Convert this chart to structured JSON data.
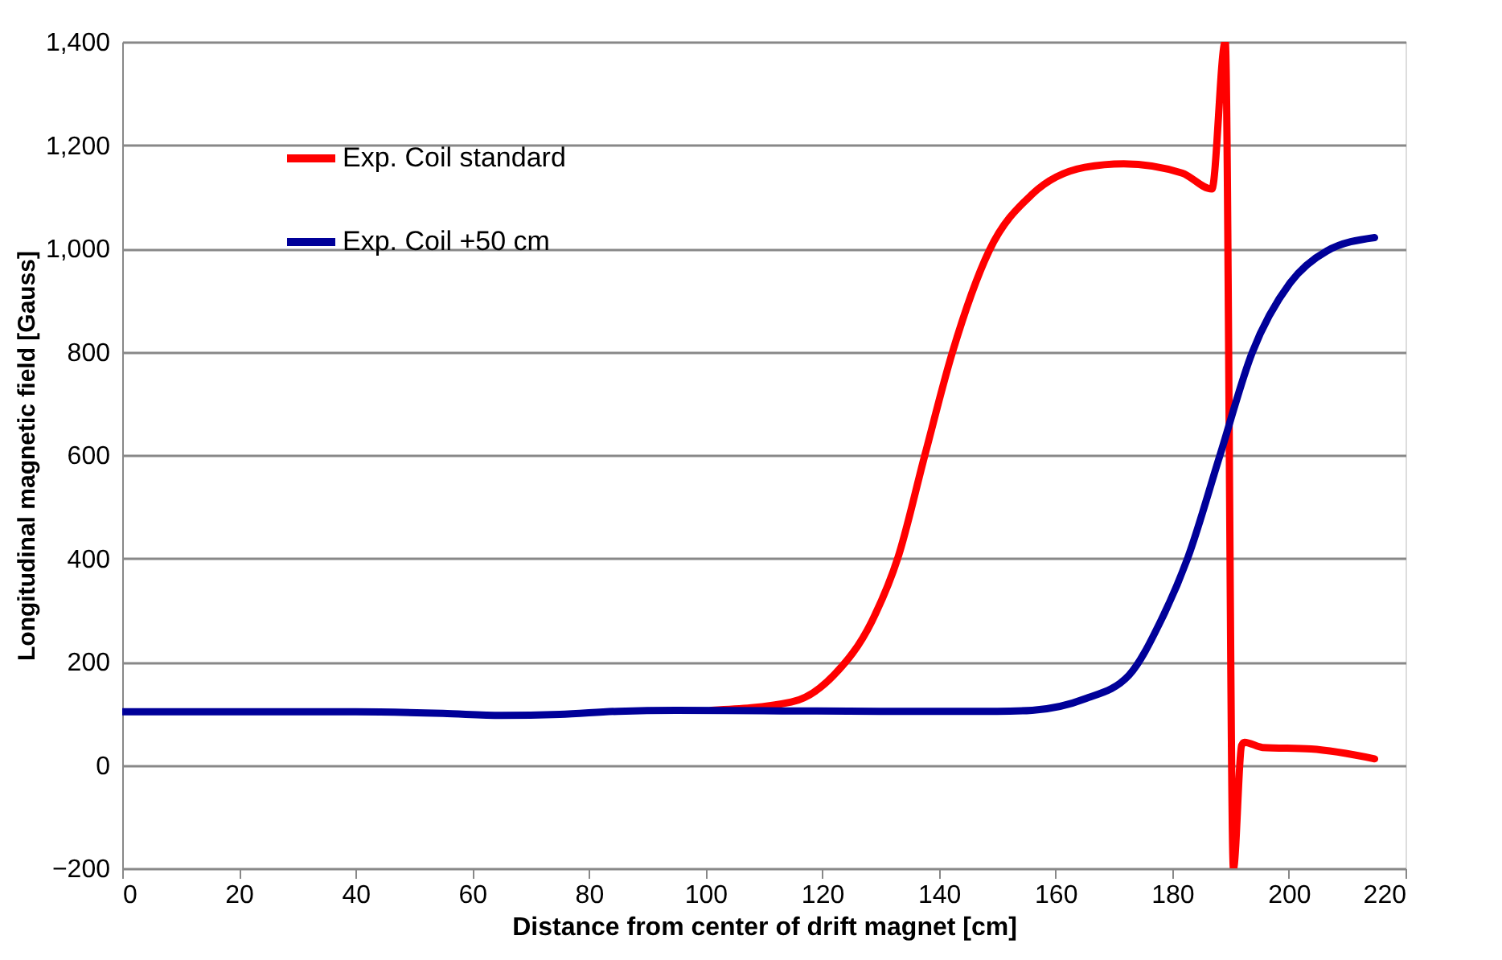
{
  "chart_data": {
    "type": "line",
    "xlabel": "Distance from center of drift magnet [cm]",
    "ylabel": "Longitudinal magnetic field [Gauss]",
    "xlim": [
      0,
      220
    ],
    "xticks": [
      0,
      20,
      40,
      60,
      80,
      100,
      120,
      140,
      160,
      180,
      200,
      220
    ],
    "ylim": [
      -200,
      1400
    ],
    "yticks": [
      -200,
      0,
      200,
      400,
      600,
      800,
      {
        "value": 1000,
        "label": "1,000"
      },
      {
        "value": 1200,
        "label": "1,200"
      },
      {
        "value": 1400,
        "label": "1,400"
      }
    ],
    "grid": "y",
    "legend": "top left",
    "marker": "none",
    "line_style": "solid",
    "series": [
      {
        "name": "Exp. Coil standard",
        "color": "#ff0000",
        "x": [
          101,
          114.7,
          122,
          128.5,
          133,
          137.6,
          142.3,
          148.6,
          156,
          165,
          171.7,
          181.7,
          186.8,
          189.1,
          190.5,
          191.9,
          192.4,
          195.5,
          203.8,
          214.7
        ],
        "values": [
          106,
          122,
          174,
          278,
          402,
          600,
          798,
          995,
          1105,
          1157,
          1164,
          1146,
          1115,
          1400,
          -200,
          38,
          44,
          34,
          31,
          12
        ]
      },
      {
        "name": "Exp. Coil +50 cm",
        "color": "#000099",
        "x": [
          0,
          40,
          55,
          65,
          75,
          85,
          95,
          110,
          130,
          150,
          156,
          165,
          172.6,
          178,
          182.7,
          188.2,
          193.7,
          200.2,
          206.5,
          214.7
        ],
        "values": [
          103,
          103,
          100,
          96,
          98,
          104,
          106,
          105,
          104,
          104,
          106,
          128,
          174,
          278,
          402,
          600,
          798,
          933,
          995,
          1021
        ]
      }
    ]
  }
}
